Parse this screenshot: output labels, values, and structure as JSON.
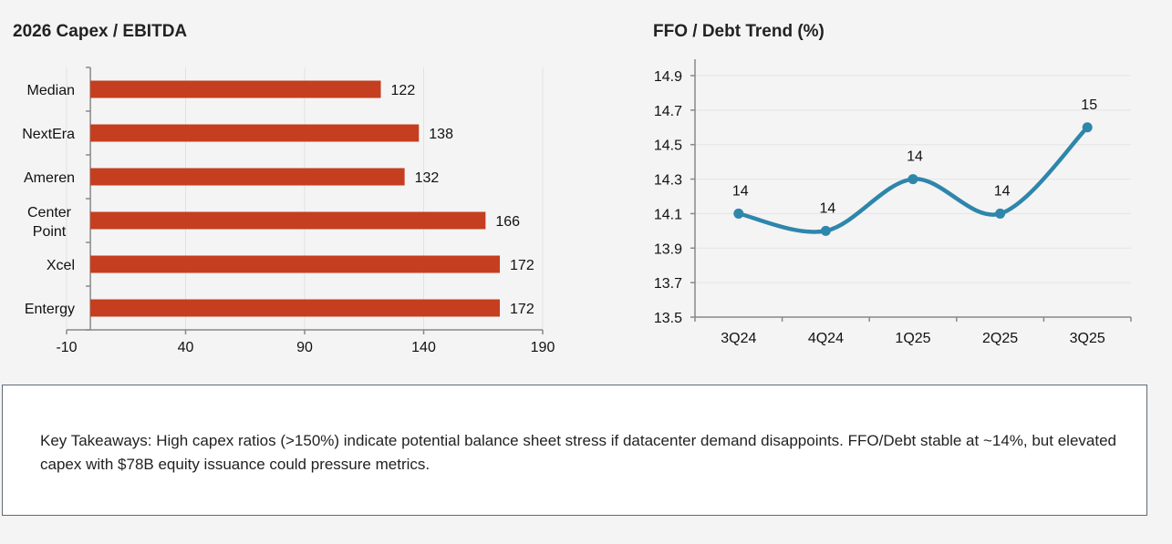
{
  "chart_data": [
    {
      "type": "bar",
      "orientation": "horizontal",
      "title": "2026 Capex / EBITDA",
      "categories": [
        "Median",
        "NextEra",
        "Ameren",
        "Center Point",
        "Xcel",
        "Entergy"
      ],
      "values": [
        122,
        138,
        132,
        166,
        172,
        172
      ],
      "data_labels": [
        "122",
        "138",
        "132",
        "166",
        "172",
        "172"
      ],
      "xlim": [
        -10,
        190
      ],
      "xticks": [
        "-10",
        "40",
        "90",
        "140",
        "190"
      ],
      "grid": "vertical",
      "color": "#c43e1f"
    },
    {
      "type": "line",
      "title": "FFO / Debt Trend (%)",
      "categories": [
        "3Q24",
        "4Q24",
        "1Q25",
        "2Q25",
        "3Q25"
      ],
      "values": [
        14.1,
        14.0,
        14.3,
        14.1,
        14.6
      ],
      "data_labels": [
        "14",
        "14",
        "14",
        "14",
        "15"
      ],
      "ylim": [
        13.5,
        14.9
      ],
      "yticks": [
        "13.5",
        "13.7",
        "13.9",
        "14.1",
        "14.3",
        "14.5",
        "14.7",
        "14.9"
      ],
      "smooth": true,
      "markers": true,
      "grid": "horizontal",
      "color": "#2e86ab"
    }
  ],
  "takeaways": {
    "text": "Key Takeaways: High capex ratios (>150%) indicate potential balance sheet stress if datacenter demand disappoints. FFO/Debt stable at ~14%, but elevated capex with $78B equity issuance could pressure metrics."
  }
}
